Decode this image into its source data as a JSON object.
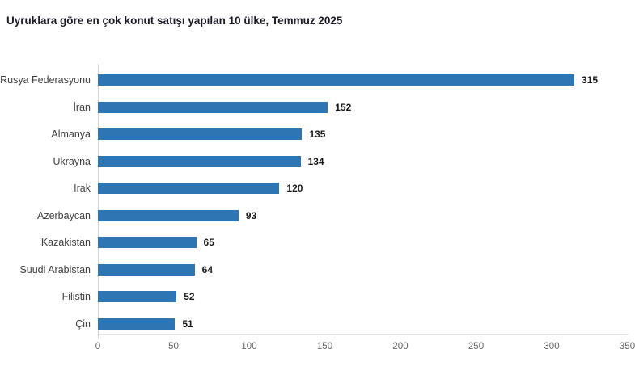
{
  "title": "Uyruklara göre en çok konut satışı yapılan 10 ülke, Temmuz 2025",
  "chart_data": {
    "type": "bar",
    "orientation": "horizontal",
    "title": "Uyruklara göre en çok konut satışı yapılan 10 ülke, Temmuz 2025",
    "categories": [
      "Rusya Federasyonu",
      "İran",
      "Almanya",
      "Ukrayna",
      "Irak",
      "Azerbaycan",
      "Kazakistan",
      "Suudi Arabistan",
      "Filistin",
      "Çin"
    ],
    "values": [
      315,
      152,
      135,
      134,
      120,
      93,
      65,
      64,
      52,
      51
    ],
    "value_labels": [
      "315",
      "152",
      "135",
      "134",
      "120",
      "93",
      "65",
      "64",
      "52",
      "51"
    ],
    "xlabel": "",
    "ylabel": "",
    "xlim": [
      0,
      350
    ],
    "xticks": [
      0,
      50,
      100,
      150,
      200,
      250,
      300,
      350
    ],
    "xtick_labels": [
      "0",
      "50",
      "100",
      "150",
      "200",
      "250",
      "300",
      "350"
    ],
    "grid": false,
    "legend": false,
    "colors": {
      "bar": "#2e76b3",
      "value_label": "#1a1a1a",
      "category_label": "#3f3f3f",
      "tick_label": "#666666",
      "axis_line": "#d4d4d4",
      "title": "#1a1a26",
      "background": "#ffffff"
    }
  }
}
